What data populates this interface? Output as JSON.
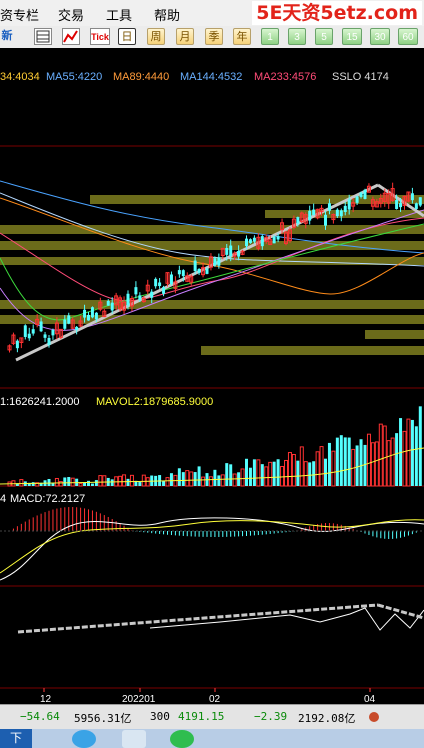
{
  "menubar": {
    "items": [
      {
        "label": "资专栏",
        "left": 0
      },
      {
        "label": "交易",
        "left": 58
      },
      {
        "label": "工具",
        "left": 106
      },
      {
        "label": "帮助",
        "left": 154
      }
    ],
    "brand": "5E天资5etz.com",
    "brand_color": "#e2231a"
  },
  "toolbar": {
    "left_label": "新",
    "tick_label": "Tick",
    "periods": [
      "日",
      "周",
      "月",
      "季",
      "年"
    ],
    "minutes": [
      "1",
      "3",
      "5",
      "15",
      "30",
      "60"
    ]
  },
  "chart_data": {
    "type": "candlestick",
    "ma_legend": [
      {
        "text": "34:4034",
        "color": "#ffcc33"
      },
      {
        "text": "MA55:4220",
        "color": "#6ab0ff"
      },
      {
        "text": "MA89:4440",
        "color": "#ff9b3a"
      },
      {
        "text": "MA144:4532",
        "color": "#6ab0ff"
      },
      {
        "text": "MA233:4576",
        "color": "#ff4c78"
      },
      {
        "text": "SSLO 4174",
        "color": "#dcdcdc"
      }
    ],
    "volume_legend": [
      {
        "text": "1:1626241.2000",
        "color": "#ffffff"
      },
      {
        "text": "MAVOL2:1879685.9000",
        "color": "#ffff3a"
      }
    ],
    "macd_legend": [
      {
        "text": "4",
        "color": "#ffffff"
      },
      {
        "text": "MACD:72.2127",
        "color": "#ffffff"
      }
    ],
    "x_ticks": [
      "12",
      "202201",
      "02",
      "04"
    ],
    "colors": {
      "up": "#ff3232",
      "down": "#54ffff",
      "zone": "#6b6b1a",
      "trend": "#e8e8e8"
    }
  },
  "statusbar": {
    "items": [
      {
        "text": "−54.64",
        "color": "#0a8a0a"
      },
      {
        "text": "5956.31亿",
        "color": "#000000"
      },
      {
        "text": "300",
        "color": "#000000"
      },
      {
        "text": "4191.15",
        "color": "#0a8a0a"
      },
      {
        "text": "−2.39",
        "color": "#0a8a0a"
      },
      {
        "text": "2192.08亿",
        "color": "#000000"
      }
    ]
  },
  "taskbar": {
    "start_label": "下"
  }
}
